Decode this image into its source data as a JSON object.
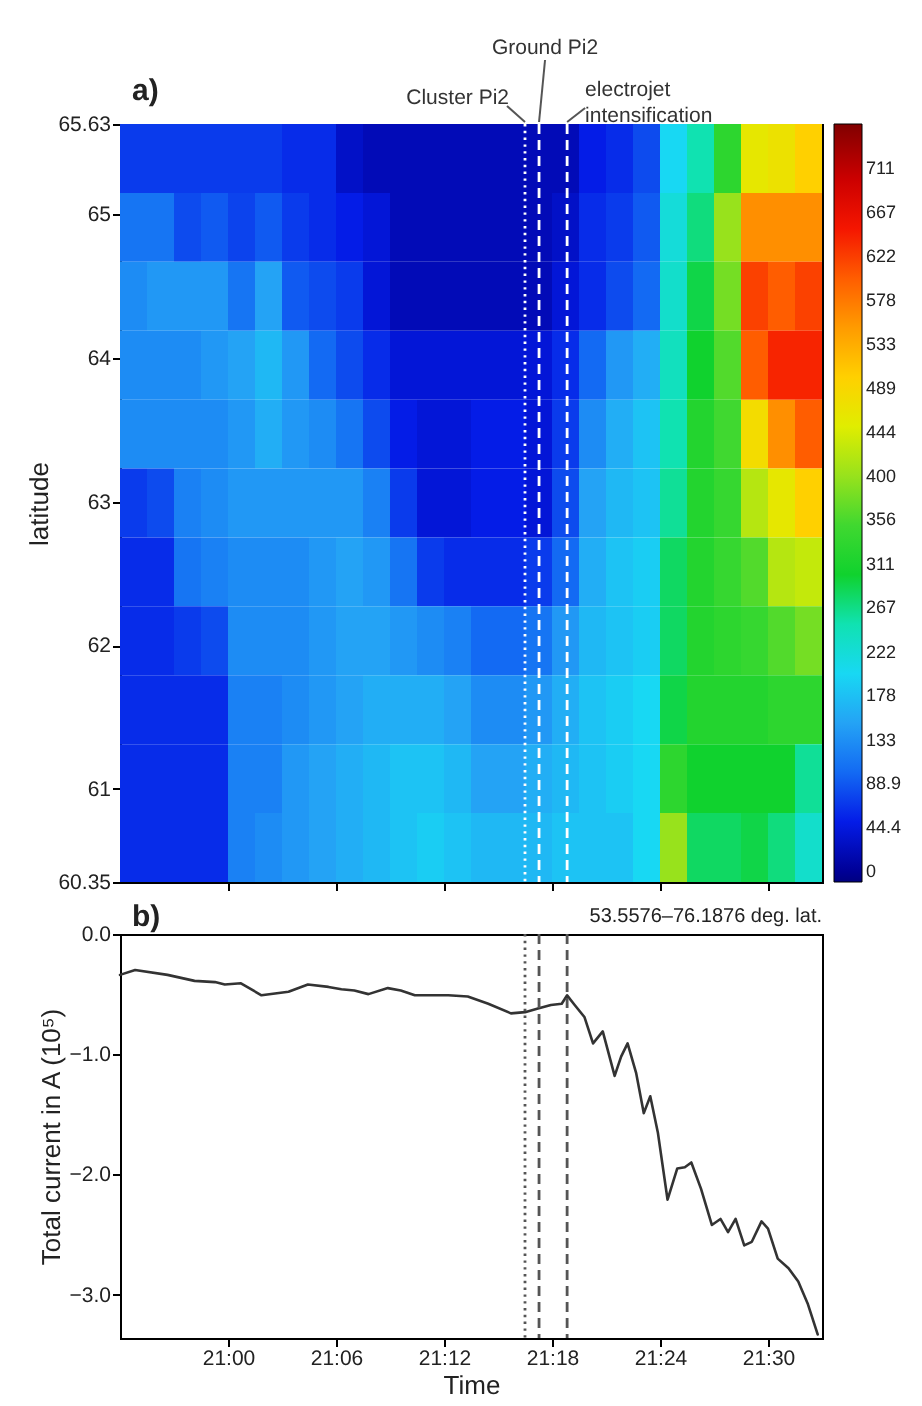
{
  "chart_data": [
    {
      "type": "heatmap",
      "title": "a)",
      "ylabel": "latitude",
      "x": [
        20.9125,
        20.9375,
        20.9625,
        20.9875,
        21.0125,
        21.0375,
        21.0625,
        21.0875,
        21.1125,
        21.1375,
        21.1625,
        21.1875,
        21.2125,
        21.2375,
        21.2625,
        21.2875,
        21.3125,
        21.3375,
        21.3625,
        21.3875,
        21.4125,
        21.4375,
        21.4625,
        21.4875,
        21.5125,
        21.5375
      ],
      "cells": [
        [
          70,
          70,
          70,
          70,
          70,
          70,
          60,
          60,
          30,
          20,
          20,
          20,
          20,
          20,
          20,
          20,
          20,
          50,
          60,
          80,
          200,
          250,
          330,
          460,
          470,
          500
        ],
        [
          110,
          110,
          80,
          90,
          75,
          90,
          70,
          60,
          50,
          40,
          20,
          20,
          20,
          20,
          20,
          20,
          30,
          60,
          70,
          90,
          220,
          270,
          400,
          560,
          560,
          560
        ],
        [
          130,
          140,
          140,
          140,
          110,
          150,
          90,
          80,
          70,
          40,
          20,
          20,
          20,
          20,
          20,
          20,
          40,
          60,
          80,
          100,
          230,
          290,
          380,
          620,
          600,
          620
        ],
        [
          130,
          130,
          130,
          140,
          150,
          170,
          140,
          100,
          80,
          60,
          40,
          40,
          40,
          40,
          40,
          40,
          60,
          100,
          140,
          160,
          240,
          300,
          360,
          600,
          640,
          640
        ],
        [
          130,
          130,
          130,
          130,
          140,
          160,
          140,
          130,
          110,
          80,
          50,
          40,
          40,
          50,
          50,
          40,
          70,
          130,
          160,
          180,
          250,
          320,
          350,
          480,
          560,
          600
        ],
        [
          70,
          80,
          120,
          130,
          140,
          140,
          140,
          140,
          140,
          120,
          70,
          40,
          40,
          50,
          50,
          40,
          80,
          150,
          170,
          180,
          260,
          320,
          340,
          420,
          460,
          500
        ],
        [
          60,
          60,
          110,
          120,
          130,
          130,
          130,
          140,
          150,
          140,
          110,
          70,
          60,
          60,
          60,
          70,
          100,
          160,
          180,
          190,
          280,
          320,
          340,
          360,
          420,
          430
        ],
        [
          60,
          60,
          70,
          80,
          130,
          130,
          130,
          140,
          150,
          150,
          140,
          130,
          120,
          100,
          100,
          110,
          140,
          170,
          180,
          190,
          280,
          320,
          330,
          340,
          360,
          380
        ],
        [
          60,
          60,
          60,
          60,
          120,
          120,
          130,
          140,
          150,
          160,
          160,
          160,
          150,
          130,
          130,
          140,
          160,
          180,
          190,
          200,
          290,
          320,
          320,
          320,
          330,
          330
        ],
        [
          60,
          60,
          60,
          60,
          120,
          120,
          140,
          150,
          160,
          170,
          180,
          180,
          170,
          150,
          150,
          160,
          170,
          180,
          190,
          200,
          330,
          300,
          300,
          300,
          300,
          260
        ],
        [
          60,
          60,
          60,
          60,
          120,
          130,
          140,
          150,
          160,
          170,
          180,
          190,
          180,
          170,
          170,
          170,
          180,
          180,
          180,
          200,
          400,
          280,
          280,
          290,
          270,
          230
        ]
      ],
      "xlim": [
        20.9,
        21.55
      ],
      "xticks": [
        {
          "value": 21.0,
          "label": null
        },
        {
          "value": 21.1,
          "label": null
        },
        {
          "value": 21.2,
          "label": null
        },
        {
          "value": 21.3,
          "label": null
        },
        {
          "value": 21.4,
          "label": null
        },
        {
          "value": 21.5,
          "label": null
        }
      ],
      "ylim": [
        60.35,
        65.63
      ],
      "yticks": [
        60.35,
        61,
        62,
        63,
        64,
        65,
        65.63
      ],
      "clim": [
        -11,
        756
      ],
      "cticks": [
        0,
        44.4,
        88.9,
        133,
        178,
        222,
        267,
        311,
        356,
        400,
        444,
        489,
        533,
        578,
        622,
        667,
        711
      ],
      "tick_labels": "y",
      "ref_lines": [
        {
          "axis": "x",
          "value": 21.275,
          "label": "Cluster Pi2",
          "color": "#ffffff",
          "line_style": "dotted"
        },
        {
          "axis": "x",
          "value": 21.288,
          "label": "Ground Pi2",
          "color": "#ffffff",
          "line_style": "dashed"
        },
        {
          "axis": "x",
          "value": 21.314,
          "label": "electrojet\nintensification",
          "color": "#ffffff",
          "line_style": "dashed"
        }
      ]
    },
    {
      "type": "line",
      "title": "b)",
      "xlabel": "Time",
      "ylabel": "Total current in A (10⁵)",
      "annotations": [
        "53.5576–76.1876 deg. lat."
      ],
      "x": [
        20.9,
        20.914,
        20.944,
        20.969,
        20.988,
        20.997,
        21.012,
        21.031,
        21.056,
        21.074,
        21.093,
        21.105,
        21.117,
        21.13,
        21.148,
        21.16,
        21.173,
        21.204,
        21.222,
        21.241,
        21.262,
        21.275,
        21.287,
        21.299,
        21.309,
        21.314,
        21.321,
        21.33,
        21.338,
        21.347,
        21.358,
        21.364,
        21.37,
        21.378,
        21.385,
        21.391,
        21.398,
        21.407,
        21.416,
        21.423,
        21.429,
        21.438,
        21.448,
        21.456,
        21.463,
        21.47,
        21.478,
        21.485,
        21.494,
        21.5,
        21.509,
        21.519,
        21.528,
        21.537,
        21.546
      ],
      "series": [
        {
          "color": "#333333",
          "values": [
            -0.34,
            -0.3,
            -0.34,
            -0.39,
            -0.4,
            -0.42,
            -0.41,
            -0.51,
            -0.48,
            -0.42,
            -0.44,
            -0.46,
            -0.47,
            -0.5,
            -0.45,
            -0.47,
            -0.51,
            -0.51,
            -0.52,
            -0.58,
            -0.66,
            -0.65,
            -0.62,
            -0.59,
            -0.58,
            -0.51,
            -0.59,
            -0.69,
            -0.91,
            -0.81,
            -1.18,
            -1.02,
            -0.91,
            -1.16,
            -1.49,
            -1.35,
            -1.65,
            -2.21,
            -1.95,
            -1.94,
            -1.9,
            -2.12,
            -2.42,
            -2.37,
            -2.48,
            -2.37,
            -2.59,
            -2.56,
            -2.39,
            -2.45,
            -2.7,
            -2.78,
            -2.89,
            -3.08,
            -3.33
          ]
        }
      ],
      "xlim": [
        20.9,
        21.55
      ],
      "xticks": [
        {
          "value": 21.0,
          "label": "21:00"
        },
        {
          "value": 21.1,
          "label": "21:06"
        },
        {
          "value": 21.2,
          "label": "21:12"
        },
        {
          "value": 21.3,
          "label": "21:18"
        },
        {
          "value": 21.4,
          "label": "21:24"
        },
        {
          "value": 21.5,
          "label": "21:30"
        }
      ],
      "ylim": [
        -3.36,
        0
      ],
      "yticks": [
        {
          "value": 0,
          "label": "0.0"
        },
        {
          "value": -1,
          "label": "−1.0"
        },
        {
          "value": -2,
          "label": "−2.0"
        },
        {
          "value": -3,
          "label": "−3.0"
        }
      ],
      "ref_lines": [
        {
          "axis": "x",
          "value": 21.275,
          "color": "#555555",
          "line_style": "dotted"
        },
        {
          "axis": "x",
          "value": 21.288,
          "color": "#555555",
          "line_style": "dashed"
        },
        {
          "axis": "x",
          "value": 21.314,
          "color": "#555555",
          "line_style": "dashed"
        }
      ]
    }
  ]
}
